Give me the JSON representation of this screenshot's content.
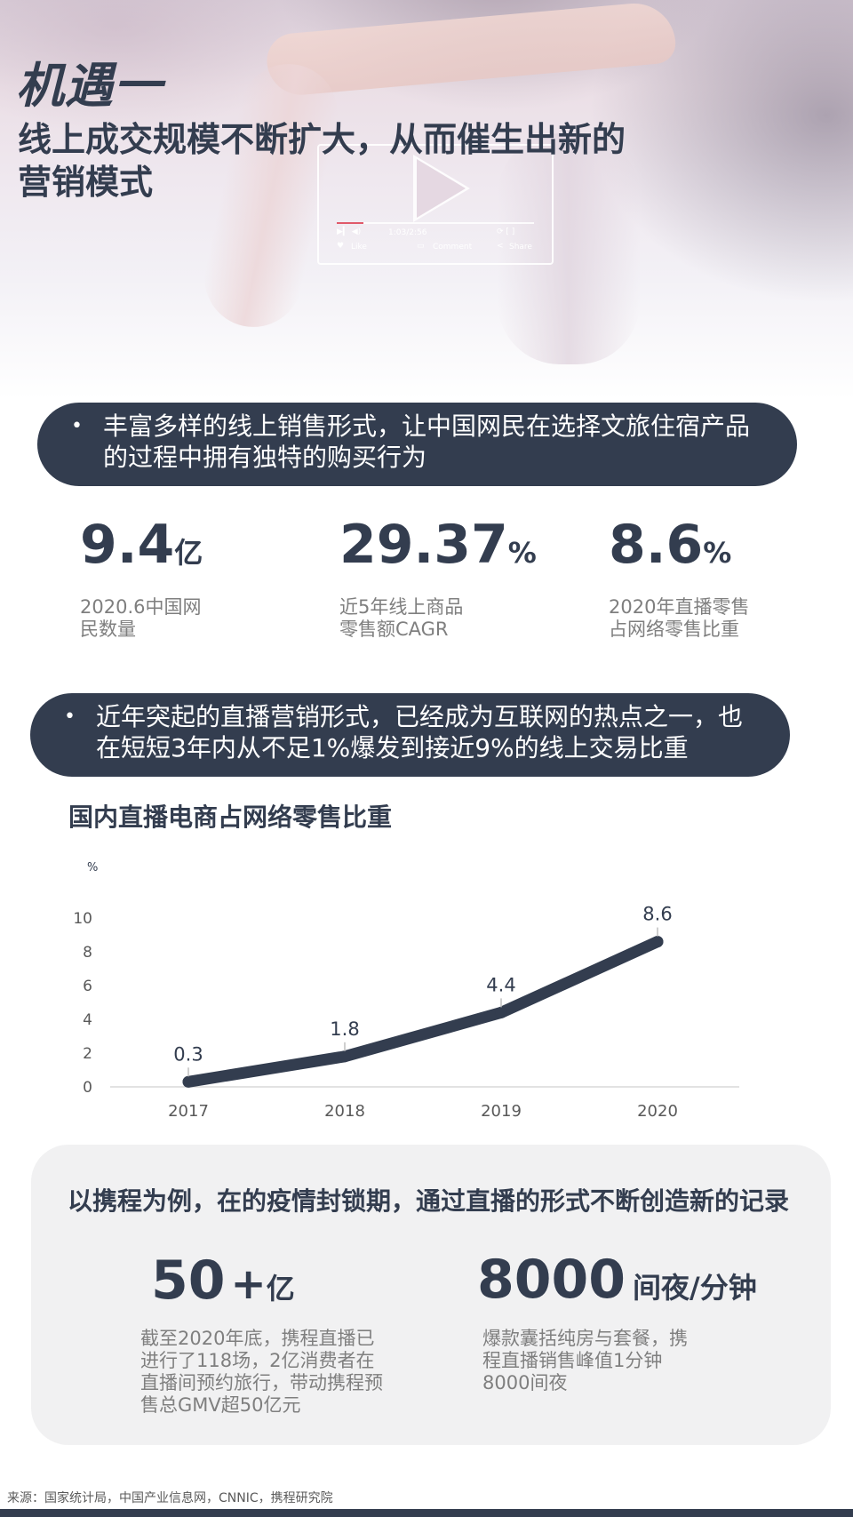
{
  "hero": {
    "kicker": "机遇一",
    "title": "线上成交规模不断扩大，从而催生出新的营销模式",
    "player": {
      "time": "1:03/2:56",
      "like": "Like",
      "comment": "Comment",
      "share": "Share"
    }
  },
  "banner1": {
    "bullet": "•",
    "line1": "丰富多样的线上销售形式，让中国网民在选择文旅住宿产品",
    "line2": "的过程中拥有独特的购买行为"
  },
  "stats": [
    {
      "value": "9.4",
      "unit": "亿",
      "desc": "2020.6中国网民数量"
    },
    {
      "value": "29.37",
      "unit": "%",
      "desc": "近5年线上商品零售额CAGR"
    },
    {
      "value": "8.6",
      "unit": "%",
      "desc": "2020年直播零售占网络零售比重"
    }
  ],
  "banner2": {
    "bullet": "•",
    "line1": "近年突起的直播营销形式，已经成为互联网的热点之一，也",
    "line2": "在短短3年内从不足1%爆发到接近9%的线上交易比重"
  },
  "chart_data": {
    "type": "line",
    "title": "国内直播电商占网络零售比重",
    "ylabel": "%",
    "xlabel": "",
    "categories": [
      "2017",
      "2018",
      "2019",
      "2020"
    ],
    "values": [
      0.3,
      1.8,
      4.4,
      8.6
    ],
    "data_labels": [
      "0.3",
      "1.8",
      "4.4",
      "8.6"
    ],
    "yticks": [
      "0",
      "2",
      "4",
      "6",
      "8",
      "10"
    ],
    "ylim": [
      0,
      10
    ],
    "grid": false,
    "color": "#333d4f"
  },
  "case": {
    "title": "以携程为例，在的疫情封锁期，通过直播的形式不断创造新的记录",
    "items": [
      {
        "value": "50",
        "plus": "+",
        "unit": "亿",
        "desc": [
          "截至2020年底，携程直播已",
          "进行了118场，2亿消费者在",
          "直播间预约旅行，带动携程预",
          "售总GMV超50亿元"
        ]
      },
      {
        "value": "8000",
        "unit": "间夜/分钟",
        "desc": [
          "爆款囊括纯房与套餐，携",
          "程直播销售峰值1分钟",
          "8000间夜"
        ]
      }
    ]
  },
  "footer": {
    "source": "来源：国家统计局，中国产业信息网，CNNIC，携程研究院"
  },
  "colors": {
    "navy": "#333d4f",
    "gray_text": "#7f7f7f",
    "card_bg": "#f1f1f2"
  }
}
